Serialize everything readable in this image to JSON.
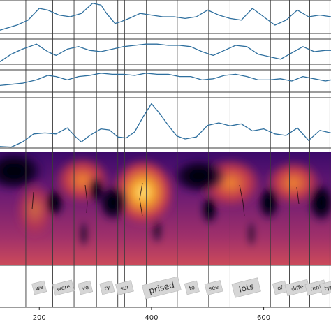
{
  "chart_data": {
    "type": "line",
    "title": "",
    "xlabel": "",
    "ylabel": "",
    "xlim": [
      130,
      720
    ],
    "x_ticks": [
      200,
      400,
      600
    ],
    "colors": {
      "line": "#2e6f9e",
      "grid": "#3a3a3a",
      "word_box": "#d6d6d6"
    },
    "word_boundaries": [
      176,
      224,
      262,
      302,
      340,
      352,
      391,
      446,
      502,
      540,
      612,
      646,
      682,
      718
    ],
    "words": [
      {
        "text": "we",
        "x": 200
      },
      {
        "text": "were",
        "x": 243
      },
      {
        "text": "ve",
        "x": 282
      },
      {
        "text": "ry",
        "x": 321
      },
      {
        "text": "sur",
        "x": 352
      },
      {
        "text": "prised",
        "x": 418
      },
      {
        "text": "to",
        "x": 472
      },
      {
        "text": "see",
        "x": 511
      },
      {
        "text": "lots",
        "x": 569
      },
      {
        "text": "of",
        "x": 629
      },
      {
        "text": "diffe",
        "x": 660
      },
      {
        "text": "rent",
        "x": 693
      },
      {
        "text": "typ",
        "x": 716
      }
    ],
    "series": [
      {
        "x": [
          130,
          160,
          180,
          200,
          215,
          235,
          255,
          275,
          295,
          310,
          320,
          335,
          345,
          360,
          380,
          400,
          420,
          440,
          460,
          480,
          500,
          520,
          540,
          560,
          580,
          600,
          620,
          640,
          660,
          680,
          700,
          720
        ],
        "values": [
          0.1,
          0.25,
          0.4,
          0.75,
          0.7,
          0.55,
          0.5,
          0.6,
          0.9,
          0.85,
          0.6,
          0.3,
          0.35,
          0.45,
          0.6,
          0.55,
          0.5,
          0.5,
          0.45,
          0.5,
          0.7,
          0.55,
          0.45,
          0.4,
          0.75,
          0.5,
          0.25,
          0.4,
          0.7,
          0.5,
          0.55,
          0.5
        ]
      },
      {
        "x": [
          130,
          150,
          170,
          195,
          215,
          230,
          250,
          270,
          290,
          310,
          330,
          350,
          370,
          390,
          410,
          430,
          450,
          470,
          490,
          510,
          530,
          550,
          570,
          590,
          610,
          630,
          650,
          670,
          690,
          710,
          720
        ],
        "values": [
          0.1,
          0.4,
          0.6,
          0.8,
          0.5,
          0.35,
          0.6,
          0.7,
          0.55,
          0.5,
          0.6,
          0.7,
          0.75,
          0.8,
          0.8,
          0.75,
          0.75,
          0.7,
          0.5,
          0.35,
          0.55,
          0.75,
          0.7,
          0.4,
          0.3,
          0.2,
          0.45,
          0.7,
          0.5,
          0.55,
          0.55
        ]
      },
      {
        "x": [
          130,
          150,
          170,
          195,
          215,
          230,
          250,
          270,
          290,
          310,
          330,
          350,
          370,
          390,
          410,
          430,
          450,
          470,
          490,
          510,
          530,
          550,
          570,
          590,
          610,
          630,
          650,
          670,
          690,
          710,
          720
        ],
        "values": [
          0.3,
          0.35,
          0.4,
          0.55,
          0.75,
          0.7,
          0.55,
          0.7,
          0.75,
          0.85,
          0.8,
          0.8,
          0.75,
          0.85,
          0.8,
          0.8,
          0.7,
          0.7,
          0.55,
          0.6,
          0.75,
          0.8,
          0.7,
          0.55,
          0.55,
          0.6,
          0.5,
          0.7,
          0.6,
          0.5,
          0.55
        ]
      },
      {
        "x": [
          130,
          150,
          170,
          190,
          210,
          230,
          250,
          265,
          275,
          290,
          310,
          325,
          340,
          355,
          370,
          385,
          400,
          415,
          430,
          445,
          460,
          480,
          500,
          520,
          540,
          560,
          580,
          600,
          620,
          640,
          660,
          680,
          700,
          720
        ],
        "values": [
          0.03,
          0.02,
          0.12,
          0.28,
          0.3,
          0.28,
          0.4,
          0.22,
          0.12,
          0.25,
          0.38,
          0.36,
          0.22,
          0.2,
          0.32,
          0.62,
          0.88,
          0.68,
          0.45,
          0.24,
          0.18,
          0.22,
          0.45,
          0.5,
          0.44,
          0.48,
          0.34,
          0.38,
          0.28,
          0.25,
          0.4,
          0.15,
          0.35,
          0.3
        ]
      }
    ]
  }
}
